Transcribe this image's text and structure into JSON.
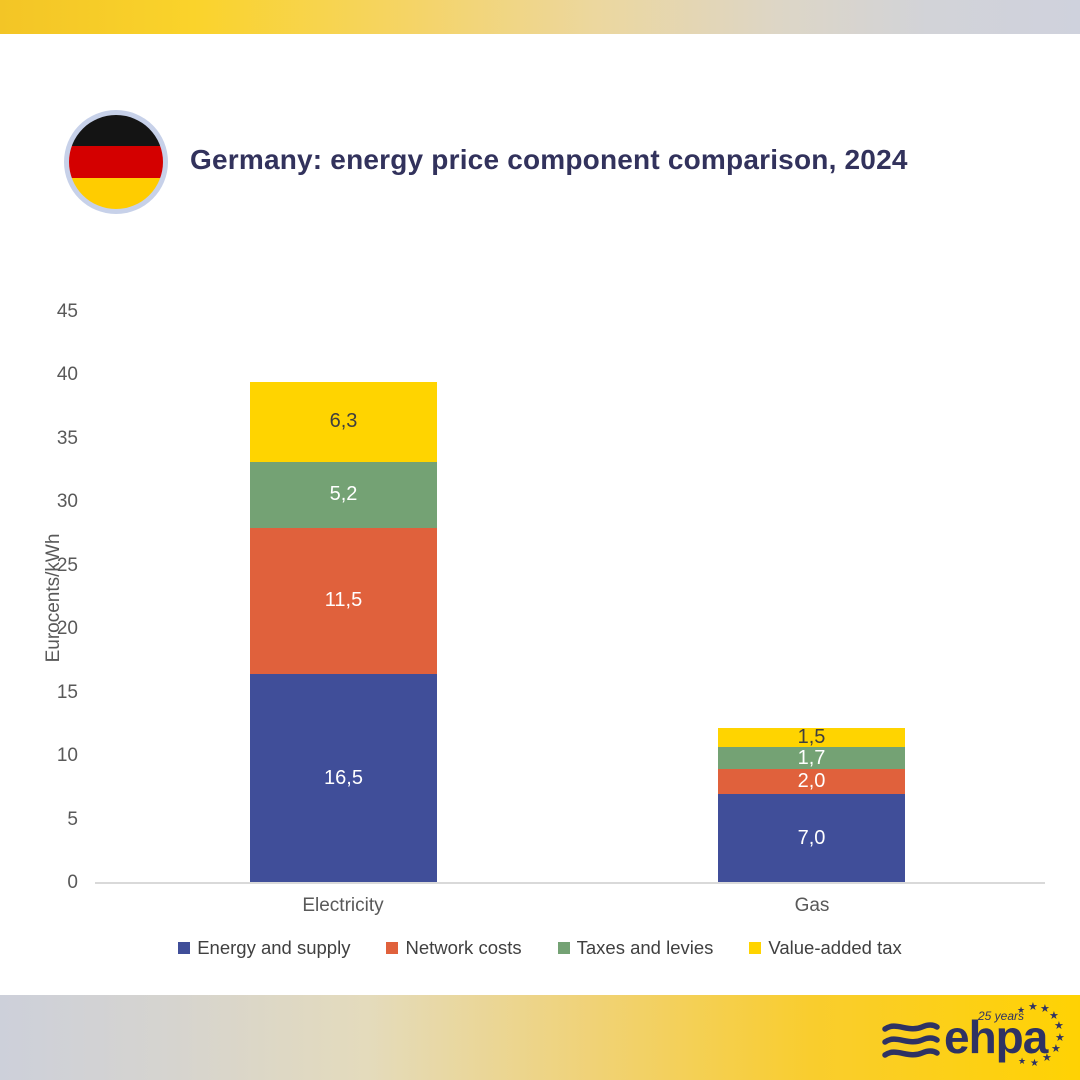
{
  "header": {
    "title": "Germany: energy price component comparison, 2024",
    "flag_icon": "germany-flag"
  },
  "chart_data": {
    "type": "bar",
    "stacked": true,
    "title": "Germany: energy price component comparison, 2024",
    "categories": [
      "Electricity",
      "Gas"
    ],
    "series": [
      {
        "name": "Energy and supply",
        "color": "#404E99",
        "values": [
          16.5,
          7.0
        ],
        "labels": [
          "16,5",
          "7,0"
        ],
        "label_color": "#FFFFFF"
      },
      {
        "name": "Network costs",
        "color": "#E0613C",
        "values": [
          11.5,
          2.0
        ],
        "labels": [
          "11,5",
          "2,0"
        ],
        "label_color": "#FFFFFF"
      },
      {
        "name": "Taxes and levies",
        "color": "#74A274",
        "values": [
          5.2,
          1.7
        ],
        "labels": [
          "5,2",
          "1,7"
        ],
        "label_color": "#FFFFFF"
      },
      {
        "name": "Value-added tax",
        "color": "#FFD400",
        "values": [
          6.3,
          1.5
        ],
        "labels": [
          "6,3",
          "1,5"
        ],
        "label_color": "#3F3F3F"
      }
    ],
    "totals": [
      39.5,
      12.2
    ],
    "xlabel": "",
    "ylabel": "Eurocents/kWh",
    "ylim": [
      0,
      45
    ],
    "ytick_step": 5,
    "yticks": [
      "0",
      "5",
      "10",
      "15",
      "20",
      "25",
      "30",
      "35",
      "40",
      "45"
    ],
    "grid": false,
    "legend_position": "bottom"
  },
  "footer": {
    "logo_text": "ehpa",
    "logo_badge": "25 years",
    "logo_color": "#2E3263"
  }
}
